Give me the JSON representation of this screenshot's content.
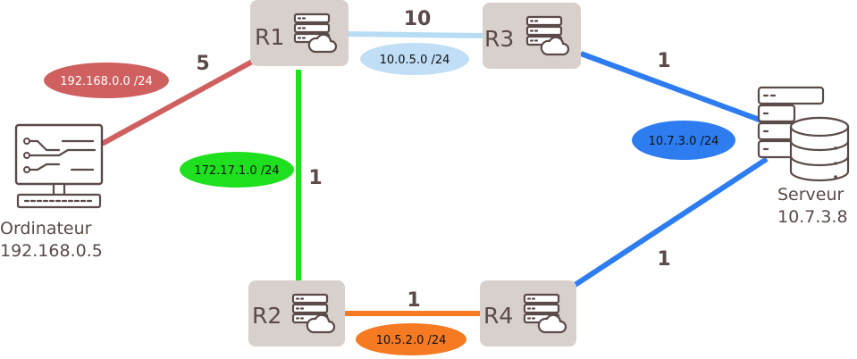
{
  "routers": {
    "r1": {
      "label": "R1"
    },
    "r2": {
      "label": "R2"
    },
    "r3": {
      "label": "R3"
    },
    "r4": {
      "label": "R4"
    }
  },
  "hosts": {
    "computer": {
      "name": "Ordinateur",
      "ip": "192.168.0.5"
    },
    "server": {
      "name": "Serveur",
      "ip": "10.7.3.8"
    }
  },
  "links": {
    "pc_r1": {
      "cost": "5",
      "subnet": "192.168.0.0 /24",
      "color": "#d06060",
      "subnet_color": "#d06060"
    },
    "r1_r3": {
      "cost": "10",
      "subnet": "10.0.5.0 /24",
      "color": "#b7dcf4",
      "subnet_color": "#c0def6"
    },
    "r1_r2": {
      "cost": "1",
      "subnet": "172.17.1.0 /24",
      "color": "#1ee01e",
      "subnet_color": "#1ee01e"
    },
    "r2_r4": {
      "cost": "1",
      "subnet": "10.5.2.0 /24",
      "color": "#f57a22",
      "subnet_color": "#f57a22"
    },
    "r3_srv": {
      "cost": "1",
      "subnet": "10.7.3.0 /24",
      "color": "#2e7df0",
      "subnet_color": "#2e7df0"
    },
    "r4_srv": {
      "cost": "1",
      "color": "#2e7df0"
    }
  }
}
